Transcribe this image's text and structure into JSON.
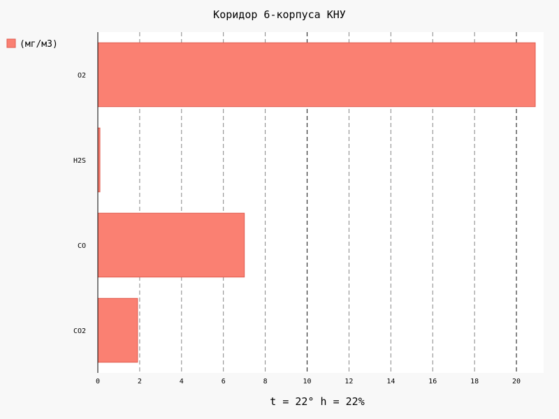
{
  "chart_data": {
    "type": "bar",
    "orientation": "horizontal",
    "title": "Коридор 6-корпуса КНУ",
    "xlabel": "t = 22° h = 22%",
    "ylabel": "",
    "categories": [
      "O2",
      "H2S",
      "CO",
      "CO2"
    ],
    "series": [
      {
        "name": "(мг/м3)",
        "values": [
          20.9,
          0.1,
          7.0,
          1.9
        ],
        "color": "#fa8072"
      }
    ],
    "xlim": [
      0,
      21.3
    ],
    "xticks": [
      0,
      2,
      4,
      6,
      8,
      10,
      12,
      14,
      16,
      18,
      20
    ],
    "major_gridlines": [
      10,
      20
    ],
    "grid": true,
    "legend": "top-left"
  },
  "colors": {
    "background": "#f8f8f8",
    "plot_background": "#ffffff",
    "bar_fill": "#fa8072",
    "bar_stroke": "#e05a4e",
    "grid": "#555555"
  }
}
